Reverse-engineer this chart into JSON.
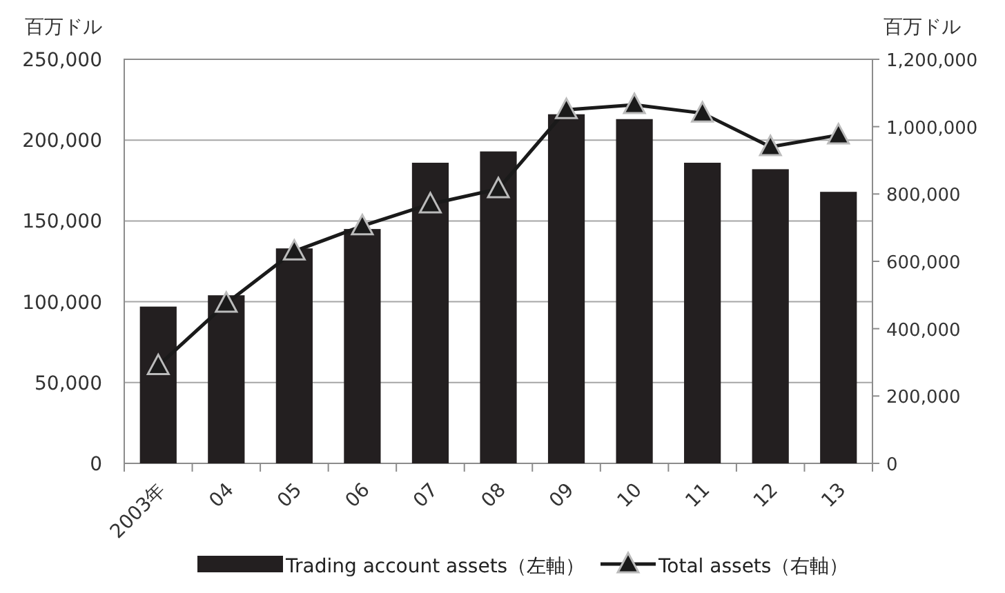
{
  "chart_data": {
    "type": "bar",
    "ylabel": "百万ドル",
    "y2label": "百万ドル",
    "categories": [
      "2003年",
      "04",
      "05",
      "06",
      "07",
      "08",
      "09",
      "10",
      "11",
      "12",
      "13"
    ],
    "series": [
      {
        "name": "Trading account assets（左軸）",
        "color": "#231f20",
        "values": [
          97000,
          104000,
          133000,
          145000,
          186000,
          193000,
          216000,
          213000,
          186000,
          182000,
          168000
        ]
      },
      {
        "name": "Total assets（右軸）",
        "type": "line",
        "axis": "y2",
        "color": "#1a1a1a",
        "marker": "triangle",
        "values": [
          290000,
          475000,
          630000,
          705000,
          770000,
          815000,
          1050000,
          1065000,
          1040000,
          940000,
          975000
        ]
      }
    ],
    "ylim": [
      0,
      250000
    ],
    "yticks": [
      0,
      {
        "value": 50000,
        "label": "50,000"
      },
      {
        "value": 100000,
        "label": "100,000"
      },
      {
        "value": 150000,
        "label": "150,000"
      },
      {
        "value": 200000,
        "label": "200,000"
      },
      {
        "value": 250000,
        "label": "250,000"
      }
    ],
    "y2lim": [
      0,
      1200000
    ],
    "y2ticks": [
      0,
      {
        "value": 200000,
        "label": "200,000"
      },
      {
        "value": 400000,
        "label": "400,000"
      },
      {
        "value": 600000,
        "label": "600,000"
      },
      {
        "value": 800000,
        "label": "800,000"
      },
      {
        "value": 1000000,
        "label": "1,000,000"
      },
      {
        "value": 1200000,
        "label": "1,200,000"
      }
    ],
    "grid": "y",
    "legend": "bottom"
  }
}
